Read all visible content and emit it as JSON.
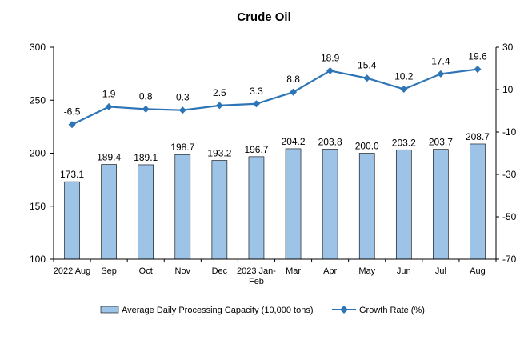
{
  "chart_data": {
    "type": "bar+line",
    "title": "Crude Oil",
    "categories": [
      "2022 Aug",
      "Sep",
      "Oct",
      "Nov",
      "Dec",
      "2023 Jan-Feb",
      "Mar",
      "Apr",
      "May",
      "Jun",
      "Jul",
      "Aug"
    ],
    "category_lines": [
      [
        "2022 Aug"
      ],
      [
        "Sep"
      ],
      [
        "Oct"
      ],
      [
        "Nov"
      ],
      [
        "Dec"
      ],
      [
        "2023 Jan-",
        "Feb"
      ],
      [
        "Mar"
      ],
      [
        "Apr"
      ],
      [
        "May"
      ],
      [
        "Jun"
      ],
      [
        "Jul"
      ],
      [
        "Aug"
      ]
    ],
    "series": [
      {
        "name": "Average Daily Processing Capacity (10,000 tons)",
        "type": "bar",
        "axis": "left",
        "color": "#9DC3E6",
        "values": [
          173.1,
          189.4,
          189.1,
          198.7,
          193.2,
          196.7,
          204.2,
          203.8,
          200.0,
          203.2,
          203.7,
          208.7
        ],
        "labels": [
          "173.1",
          "189.4",
          "189.1",
          "198.7",
          "193.2",
          "196.7",
          "204.2",
          "203.8",
          "200.0",
          "203.2",
          "203.7",
          "208.7"
        ]
      },
      {
        "name": "Growth Rate (%)",
        "type": "line",
        "axis": "right",
        "color": "#2E75B6",
        "values": [
          -6.5,
          1.9,
          0.8,
          0.3,
          2.5,
          3.3,
          8.8,
          18.9,
          15.4,
          10.2,
          17.4,
          19.6
        ],
        "labels": [
          "-6.5",
          "1.9",
          "0.8",
          "0.3",
          "2.5",
          "3.3",
          "8.8",
          "18.9",
          "15.4",
          "10.2",
          "17.4",
          "19.6"
        ]
      }
    ],
    "y_left": {
      "min": 100,
      "max": 300,
      "ticks": [
        "100",
        "150",
        "200",
        "250",
        "300"
      ]
    },
    "y_right": {
      "min": -70,
      "max": 30,
      "ticks": [
        "-70",
        "-50",
        "-30",
        "-10",
        "10",
        "30"
      ]
    },
    "grid": false,
    "legend": "bottom"
  }
}
